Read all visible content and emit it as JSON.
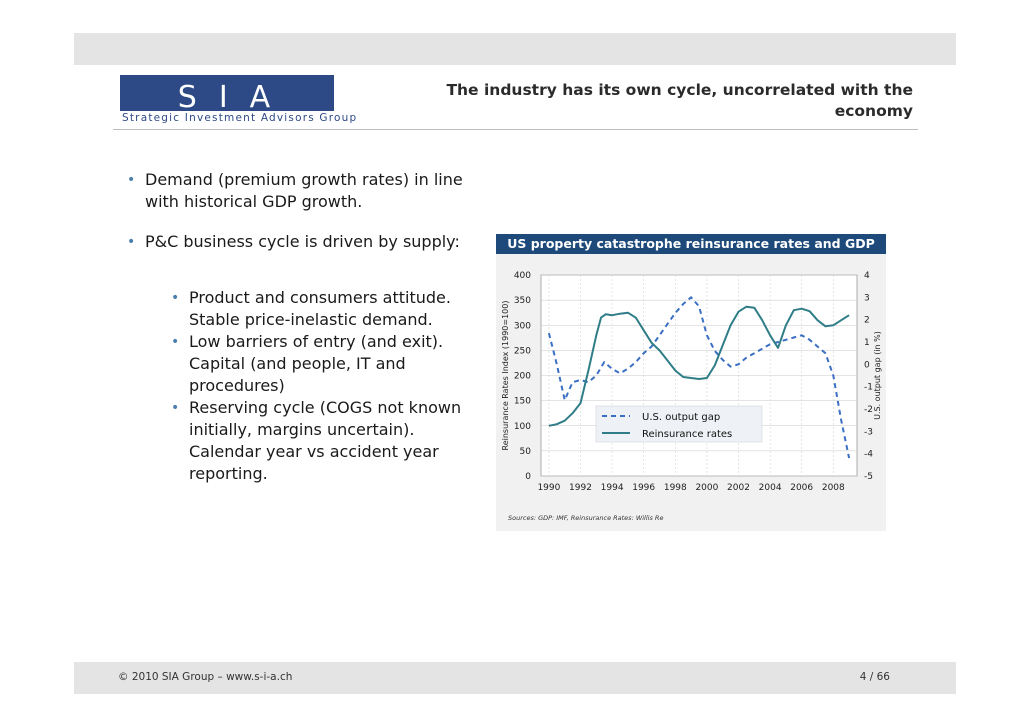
{
  "header": {
    "logo_letters": "SIA",
    "logo_tagline": "Strategic Investment Advisors Group",
    "title": "The industry has its own cycle, uncorrelated with the economy"
  },
  "bullets": {
    "item1": "Demand (premium growth rates) in line with historical GDP growth.",
    "item2": "P&C business cycle is driven by supply:",
    "sub1": "Product and consumers attitude. Stable price-inelastic demand.",
    "sub2": "Low barriers of entry (and exit). Capital (and people, IT and procedures)",
    "sub3": "Reserving cycle (COGS not known initially, margins uncertain). Calendar year vs accident year reporting."
  },
  "chart_data": {
    "type": "line",
    "title": "US property catastrophe reinsurance rates and GDP",
    "ylabel": "Reinsurance Rates Index (1990=100)",
    "y2label": "U.S. output gap (in %)",
    "xlim": [
      1989.5,
      2009.5
    ],
    "ylim": [
      0,
      400
    ],
    "y2lim": [
      -5,
      4
    ],
    "x_ticks": [
      1990,
      1992,
      1994,
      1996,
      1998,
      2000,
      2002,
      2004,
      2006,
      2008
    ],
    "y_ticks": [
      0,
      50,
      100,
      150,
      200,
      250,
      300,
      350,
      400
    ],
    "y2_ticks": [
      -5,
      -4,
      -3,
      -2,
      -1,
      0,
      1,
      2,
      3,
      4
    ],
    "legend_position": "center-right",
    "grid": true,
    "series": [
      {
        "name": "U.S. output gap",
        "axis": "right",
        "style": "dashed",
        "color": "#3a6fc4",
        "x": [
          1990,
          1990.5,
          1991,
          1991.5,
          1992,
          1992.5,
          1993,
          1993.5,
          1994,
          1994.5,
          1995,
          1995.5,
          1996,
          1996.5,
          1997,
          1997.5,
          1998,
          1998.5,
          1999,
          1999.5,
          2000,
          2000.5,
          2001,
          2001.5,
          2002,
          2002.5,
          2003,
          2003.5,
          2004,
          2004.5,
          2005,
          2005.5,
          2006,
          2006.5,
          2007,
          2007.5,
          2008,
          2008.5,
          2009
        ],
        "y": [
          1.4,
          0.0,
          -1.6,
          -0.8,
          -0.7,
          -0.8,
          -0.5,
          0.1,
          -0.2,
          -0.4,
          -0.2,
          0.1,
          0.5,
          0.8,
          1.3,
          1.8,
          2.3,
          2.7,
          3.0,
          2.6,
          1.3,
          0.6,
          0.2,
          -0.1,
          0.0,
          0.3,
          0.5,
          0.7,
          0.9,
          1.0,
          1.1,
          1.2,
          1.3,
          1.1,
          0.8,
          0.5,
          -0.5,
          -2.5,
          -4.2
        ]
      },
      {
        "name": "Reinsurance rates",
        "axis": "left",
        "style": "solid",
        "color": "#2f7d87",
        "x": [
          1990,
          1990.5,
          1991,
          1991.5,
          1992,
          1992.5,
          1993,
          1993.3,
          1993.6,
          1994,
          1994.5,
          1995,
          1995.5,
          1996,
          1996.5,
          1997,
          1997.5,
          1998,
          1998.5,
          1999,
          1999.5,
          2000,
          2000.5,
          2001,
          2001.5,
          2002,
          2002.5,
          2003,
          2003.5,
          2004,
          2004.5,
          2005,
          2005.5,
          2006,
          2006.5,
          2007,
          2007.5,
          2008,
          2008.5,
          2009
        ],
        "y": [
          100,
          103,
          110,
          125,
          145,
          210,
          280,
          315,
          322,
          320,
          323,
          325,
          315,
          290,
          265,
          250,
          230,
          210,
          197,
          195,
          193,
          195,
          220,
          260,
          300,
          327,
          337,
          335,
          310,
          280,
          255,
          300,
          330,
          333,
          328,
          310,
          298,
          300,
          310,
          320
        ]
      }
    ],
    "source_note": "Sources: GDP: IMF, Reinsurance Rates: Willis Re"
  },
  "footer": {
    "copyright": "© 2010 SIA Group – www.s-i-a.ch",
    "page": "4 / 66"
  }
}
